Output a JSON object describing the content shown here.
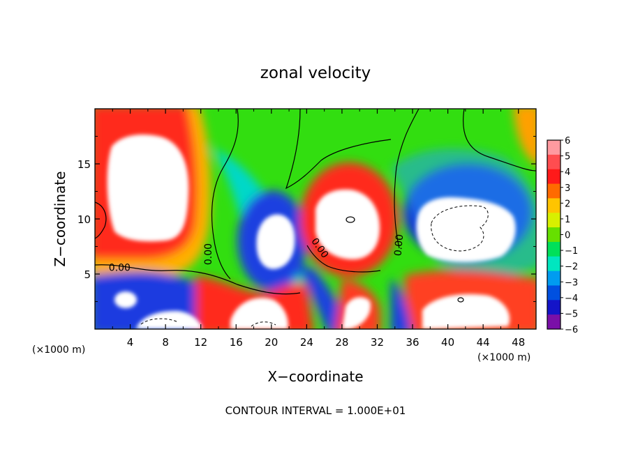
{
  "chart_data": {
    "type": "heatmap",
    "title": "zonal velocity",
    "xlabel": "X−coordinate",
    "ylabel": "Z−coordinate",
    "x_unit_left": "(×1000 m)",
    "x_unit_right": "(×1000 m)",
    "xlim": [
      0,
      50
    ],
    "ylim": [
      0,
      20
    ],
    "x_ticks": [
      4,
      8,
      12,
      16,
      20,
      24,
      28,
      32,
      36,
      40,
      44,
      48
    ],
    "x_tick_labels": [
      "4",
      "8",
      "12",
      "16",
      "20",
      "24",
      "28",
      "32",
      "36",
      "40",
      "44",
      "48"
    ],
    "y_ticks": [
      5,
      10,
      15
    ],
    "y_tick_labels": [
      "5",
      "10",
      "15"
    ],
    "footer": "CONTOUR INTERVAL = 1.000E+01",
    "contour_labels": [
      {
        "text": "0.00",
        "x": 2.8,
        "y": 5.3,
        "rotate": 0
      },
      {
        "text": "0.00",
        "x": 13.2,
        "y": 6.8,
        "rotate": -90
      },
      {
        "text": "0.00",
        "x": 25.2,
        "y": 7.2,
        "rotate": 55
      },
      {
        "text": "0.00",
        "x": 34.8,
        "y": 7.6,
        "rotate": -85
      }
    ],
    "colorbar": {
      "min": -6,
      "max": 6,
      "labels": [
        "6",
        "5",
        "4",
        "3",
        "2",
        "1",
        "0",
        "−1",
        "−2",
        "−3",
        "−4",
        "−5",
        "−6"
      ],
      "colors": [
        "#ff9aa0",
        "#ff4d50",
        "#ff1a1a",
        "#ff6a00",
        "#ffc400",
        "#d8f000",
        "#66e000",
        "#00e05a",
        "#00e6c0",
        "#009cf0",
        "#0050e0",
        "#1414c8",
        "#7a10a8"
      ]
    }
  }
}
